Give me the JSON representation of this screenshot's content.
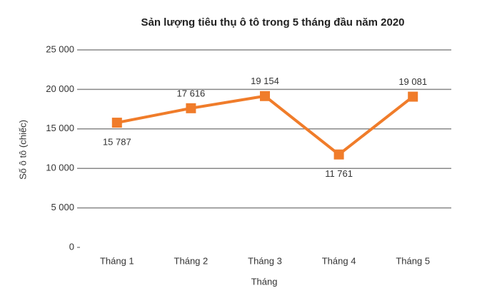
{
  "chart_data": {
    "type": "line",
    "title": "Sản lượng tiêu thụ ô tô trong 5 tháng đầu năm 2020",
    "y_label": "Số ô tô (chiếc)",
    "x_label": "Tháng",
    "categories": [
      "Tháng 1",
      "Tháng 2",
      "Tháng 3",
      "Tháng 4",
      "Tháng 5"
    ],
    "values": [
      15787,
      17616,
      19154,
      11761,
      19081
    ],
    "value_labels": [
      "15 787",
      "17 616",
      "19 154",
      "11 761",
      "19 081"
    ],
    "color": "#f07c2a",
    "ylim": [
      0,
      25000
    ],
    "yticks": [
      0,
      {
        "value": 5000,
        "label": "5 000"
      },
      {
        "value": 10000,
        "label": "10 000"
      },
      {
        "value": 15000,
        "label": "15 000"
      },
      {
        "value": 20000,
        "label": "20 000"
      },
      {
        "value": 25000,
        "label": "25 000"
      }
    ],
    "grid": true
  }
}
